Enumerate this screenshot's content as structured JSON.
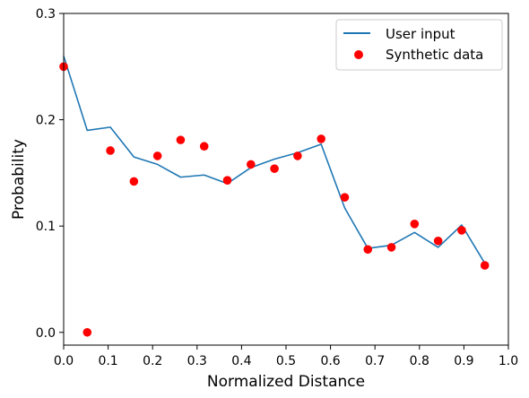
{
  "chart_data": {
    "type": "line+scatter",
    "xlabel": "Normalized Distance",
    "ylabel": "Probability",
    "xlim": [
      0.0,
      1.0
    ],
    "ylim": [
      -0.012,
      0.3
    ],
    "xticks": [
      0.0,
      0.1,
      0.2,
      0.3,
      0.4,
      0.5,
      0.6,
      0.7,
      0.8,
      0.9,
      1.0
    ],
    "xtick_labels": [
      "0.0",
      "0.1",
      "0.2",
      "0.3",
      "0.4",
      "0.5",
      "0.6",
      "0.7",
      "0.8",
      "0.9",
      "1.0"
    ],
    "yticks": [
      0.0,
      0.1,
      0.2,
      0.3
    ],
    "ytick_labels": [
      "0.0",
      "0.1",
      "0.2",
      "0.3"
    ],
    "grid": false,
    "legend_position": "top-right",
    "series": [
      {
        "name": "User input",
        "kind": "line",
        "color": "#1f77b4",
        "x": [
          0.0,
          0.053,
          0.105,
          0.158,
          0.211,
          0.263,
          0.316,
          0.368,
          0.421,
          0.474,
          0.526,
          0.579,
          0.632,
          0.684,
          0.737,
          0.789,
          0.842,
          0.895,
          0.947
        ],
        "y": [
          0.26,
          0.19,
          0.193,
          0.165,
          0.158,
          0.146,
          0.148,
          0.14,
          0.155,
          0.163,
          0.169,
          0.177,
          0.117,
          0.079,
          0.082,
          0.094,
          0.08,
          0.101,
          0.065
        ]
      },
      {
        "name": "Synthetic data",
        "kind": "scatter",
        "color": "#ff0000",
        "x": [
          0.0,
          0.053,
          0.105,
          0.158,
          0.211,
          0.263,
          0.316,
          0.368,
          0.421,
          0.474,
          0.526,
          0.579,
          0.632,
          0.684,
          0.737,
          0.789,
          0.842,
          0.895,
          0.947
        ],
        "y": [
          0.25,
          0.0,
          0.171,
          0.142,
          0.166,
          0.181,
          0.175,
          0.143,
          0.158,
          0.154,
          0.166,
          0.182,
          0.127,
          0.078,
          0.08,
          0.102,
          0.086,
          0.096,
          0.063
        ]
      }
    ]
  }
}
